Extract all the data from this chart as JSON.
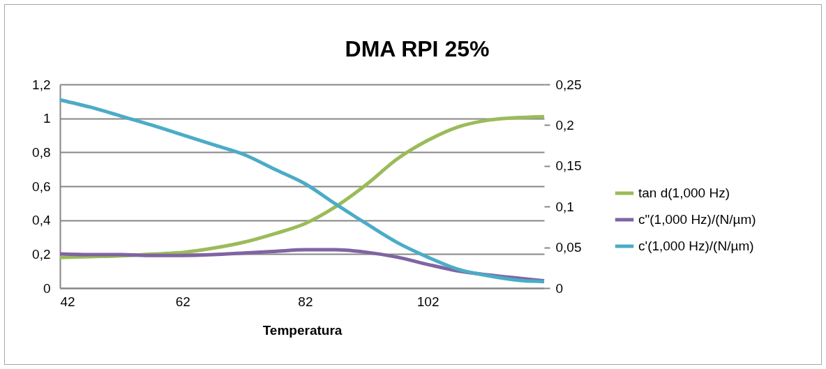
{
  "chart_data": {
    "type": "line",
    "title": "DMA RPI 25%",
    "xlabel": "Temperatura",
    "x": [
      42,
      47,
      52,
      57,
      62,
      67,
      72,
      77,
      82,
      87,
      92,
      97,
      102,
      107,
      112,
      117,
      121
    ],
    "xlim": [
      42,
      121
    ],
    "xticks": [
      42,
      62,
      82,
      102
    ],
    "ylim": [
      0,
      1.2
    ],
    "yticks": [
      {
        "value": 0,
        "label": "0"
      },
      {
        "value": 0.2,
        "label": "0,2"
      },
      {
        "value": 0.4,
        "label": "0,4"
      },
      {
        "value": 0.6,
        "label": "0,6"
      },
      {
        "value": 0.8,
        "label": "0,8"
      },
      {
        "value": 1,
        "label": "1"
      },
      {
        "value": 1.2,
        "label": "1,2"
      }
    ],
    "y2lim": [
      0,
      0.25
    ],
    "y2ticks": [
      {
        "value": 0,
        "label": "0"
      },
      {
        "value": 0.05,
        "label": "0,05"
      },
      {
        "value": 0.1,
        "label": "0,1"
      },
      {
        "value": 0.15,
        "label": "0,15"
      },
      {
        "value": 0.2,
        "label": "0,2"
      },
      {
        "value": 0.25,
        "label": "0,25"
      }
    ],
    "grid": "y",
    "legend": "right",
    "marker": "none",
    "line_style": "solid",
    "series": [
      {
        "name": "tan d(1,000 Hz)",
        "color": "#9bbb59",
        "values": [
          0.18,
          0.185,
          0.19,
          0.2,
          0.21,
          0.235,
          0.27,
          0.32,
          0.38,
          0.48,
          0.61,
          0.76,
          0.87,
          0.95,
          0.99,
          1.005,
          1.01
        ]
      },
      {
        "name": "c\"(1,000 Hz)/(N/µm)",
        "color": "#8064a2",
        "axis": "y2",
        "values": [
          0.042,
          0.041,
          0.041,
          0.04,
          0.04,
          0.041,
          0.043,
          0.045,
          0.047,
          0.047,
          0.044,
          0.038,
          0.029,
          0.021,
          0.016,
          0.012,
          0.009
        ]
      },
      {
        "name": "c'(1,000 Hz)/(N/µm)",
        "color": "#4bacc6",
        "axis": "y2",
        "values": [
          0.231,
          0.222,
          0.211,
          0.2,
          0.188,
          0.176,
          0.164,
          0.146,
          0.128,
          0.103,
          0.079,
          0.056,
          0.038,
          0.023,
          0.015,
          0.0095,
          0.008
        ]
      }
    ]
  }
}
